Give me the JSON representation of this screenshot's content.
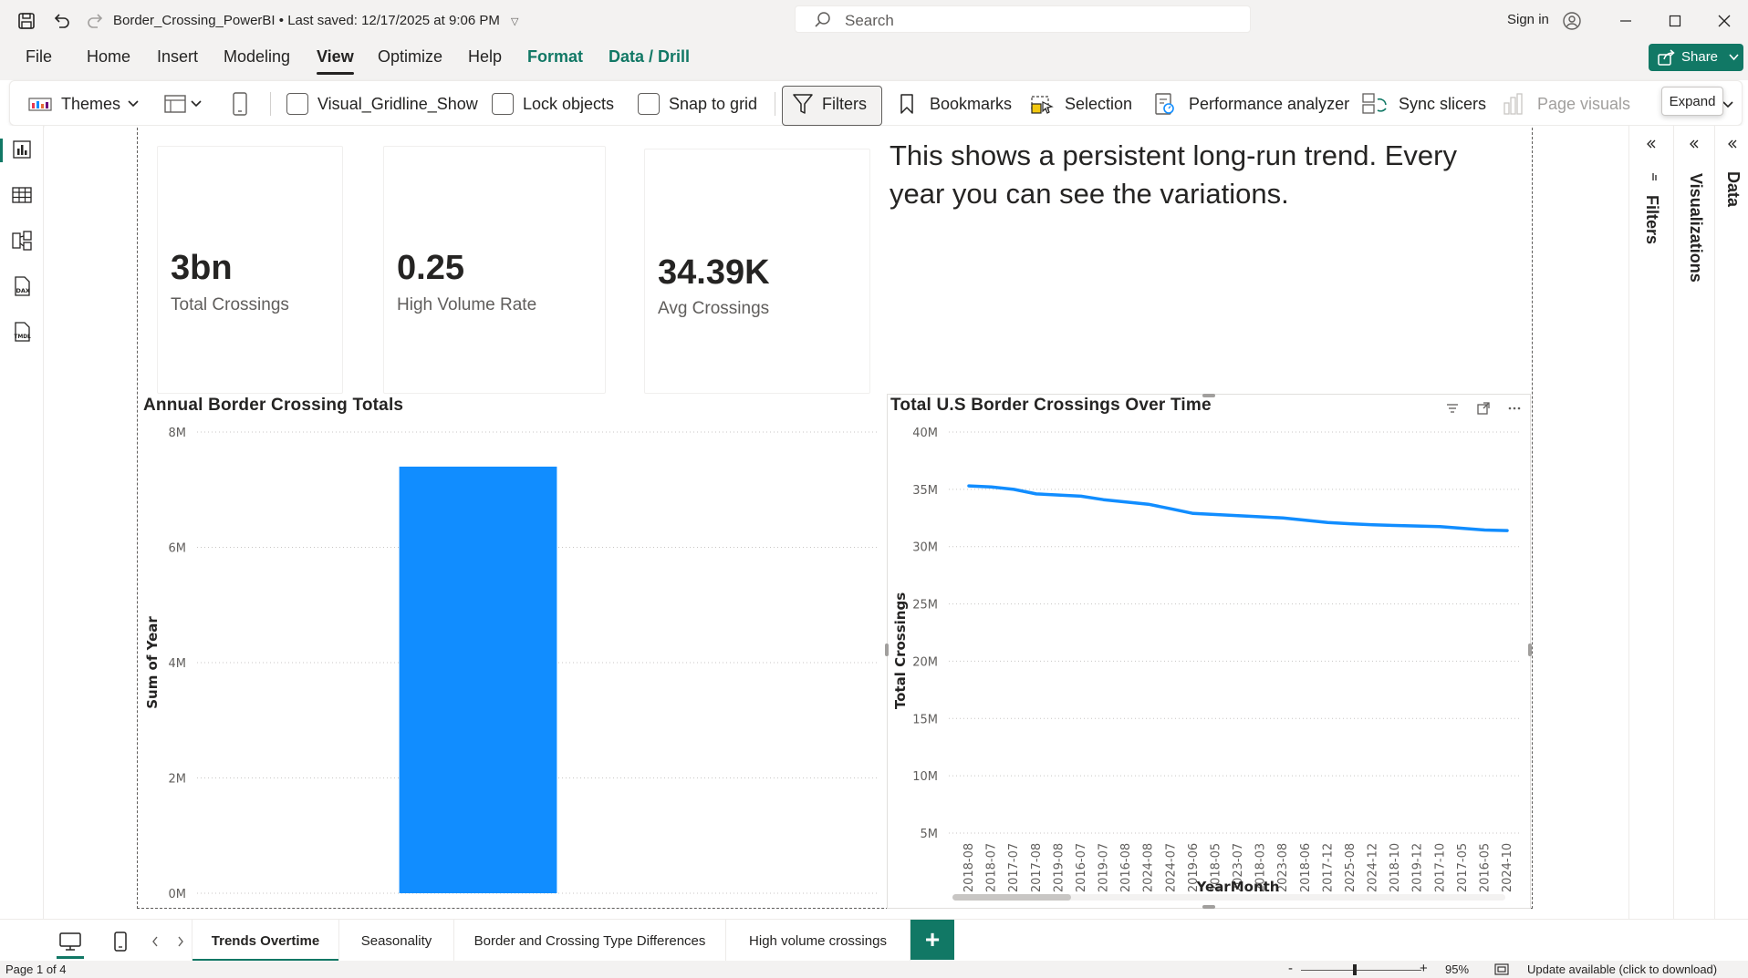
{
  "titlebar": {
    "file_name": "Border_Crossing_PowerBI",
    "last_saved": "Last saved: 12/17/2025 at 9:06 PM",
    "search_placeholder": "Search",
    "signin_label": "Sign in"
  },
  "menu": {
    "tabs": [
      {
        "label": "File"
      },
      {
        "label": "Home"
      },
      {
        "label": "Insert"
      },
      {
        "label": "Modeling"
      },
      {
        "label": "View",
        "active": true
      },
      {
        "label": "Optimize"
      },
      {
        "label": "Help"
      },
      {
        "label": "Format",
        "contextual": true
      },
      {
        "label": "Data / Drill",
        "contextual": true
      }
    ],
    "share_label": "Share"
  },
  "ribbon": {
    "themes_label": "Themes",
    "gridline_label": "Visual_Gridline_Show",
    "lock_label": "Lock objects",
    "snap_label": "Snap to grid",
    "filters_label": "Filters",
    "bookmarks_label": "Bookmarks",
    "selection_label": "Selection",
    "performance_label": "Performance analyzer",
    "sync_label": "Sync slicers",
    "page_visuals_label": "Page visuals",
    "expand_tooltip": "Expand"
  },
  "cards": [
    {
      "value": "3bn",
      "label": "Total Crossings"
    },
    {
      "value": "0.25",
      "label": "High Volume Rate"
    },
    {
      "value": "34.39K",
      "label": "Avg Crossings"
    }
  ],
  "narrative": "This shows a persistent long-run trend. Every year you can see the variations.",
  "chart_data": [
    {
      "type": "bar",
      "title": "Annual Border Crossing Totals",
      "ylabel": "Sum of Year",
      "xlabel": "",
      "y_ticks": [
        "0M",
        "2M",
        "4M",
        "6M",
        "8M"
      ],
      "ylim": [
        0,
        8000000
      ],
      "categories": [
        ""
      ],
      "values": [
        7400000
      ],
      "color": "#118DFF",
      "grid": true
    },
    {
      "type": "line",
      "title": "Total U.S Border Crossings Over Time",
      "ylabel": "Total Crossings",
      "xlabel": "YearMonth",
      "y_ticks": [
        "5M",
        "10M",
        "15M",
        "20M",
        "25M",
        "30M",
        "35M",
        "40M"
      ],
      "ylim": [
        5000000,
        40000000
      ],
      "x": [
        "2018-08",
        "2018-07",
        "2017-07",
        "2017-08",
        "2019-08",
        "2016-07",
        "2019-07",
        "2016-08",
        "2024-08",
        "2024-07",
        "2019-06",
        "2018-05",
        "2023-07",
        "2018-03",
        "2023-08",
        "2018-06",
        "2017-12",
        "2025-08",
        "2024-12",
        "2018-10",
        "2019-12",
        "2017-10",
        "2017-05",
        "2016-05",
        "2024-10"
      ],
      "values": [
        35300000,
        35200000,
        35000000,
        34600000,
        34500000,
        34400000,
        34100000,
        33900000,
        33700000,
        33300000,
        32900000,
        32800000,
        32700000,
        32600000,
        32500000,
        32300000,
        32100000,
        32000000,
        31900000,
        31850000,
        31800000,
        31750000,
        31600000,
        31450000,
        31400000
      ],
      "color": "#118DFF",
      "grid": true
    }
  ],
  "panes": {
    "filters_label": "Filters",
    "visualizations_label": "Visualizations",
    "data_label": "Data"
  },
  "pagetabs": [
    {
      "label": "Trends Overtime",
      "active": true
    },
    {
      "label": "Seasonality"
    },
    {
      "label": "Border and Crossing Type Differences"
    },
    {
      "label": "High volume crossings"
    }
  ],
  "status": {
    "page_info": "Page 1 of 4",
    "zoom": "95%",
    "update": "Update available (click to download)"
  }
}
